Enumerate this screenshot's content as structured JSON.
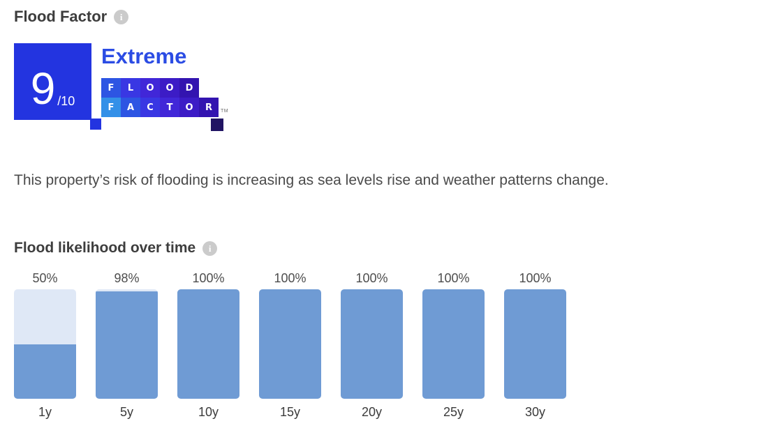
{
  "flood_factor": {
    "title": "Flood Factor",
    "score": "9",
    "score_suffix": "/10",
    "rating": "Extreme",
    "badge_color": "#2334e0",
    "rating_color": "#2b4ce4",
    "logo": {
      "row1": [
        {
          "letter": "F",
          "color": "#2d55e3"
        },
        {
          "letter": "L",
          "color": "#3937e3"
        },
        {
          "letter": "O",
          "color": "#4127d8"
        },
        {
          "letter": "O",
          "color": "#3c1cc6"
        },
        {
          "letter": "D",
          "color": "#3314b0"
        }
      ],
      "row2": [
        {
          "letter": "F",
          "color": "#3390e8"
        },
        {
          "letter": "A",
          "color": "#2d55e3"
        },
        {
          "letter": "C",
          "color": "#3937e3"
        },
        {
          "letter": "T",
          "color": "#4127d8"
        },
        {
          "letter": "O",
          "color": "#3c1cc6"
        },
        {
          "letter": "R",
          "color": "#3314b0"
        }
      ],
      "trademark": "TM",
      "end_square_color": "#211463"
    },
    "description": "This property’s risk of flooding is increasing as sea levels rise and weather patterns change."
  },
  "chart_data": {
    "type": "bar",
    "title": "Flood likelihood over time",
    "categories": [
      "1y",
      "5y",
      "10y",
      "15y",
      "20y",
      "25y",
      "30y"
    ],
    "values": [
      50,
      98,
      100,
      100,
      100,
      100,
      100
    ],
    "value_labels": [
      "50%",
      "98%",
      "100%",
      "100%",
      "100%",
      "100%",
      "100%"
    ],
    "ylim": [
      0,
      100
    ],
    "unit": "%",
    "bar_color": "#6f9bd4",
    "bar_track_color": "#dfe8f6",
    "grid": false,
    "legend": false
  }
}
